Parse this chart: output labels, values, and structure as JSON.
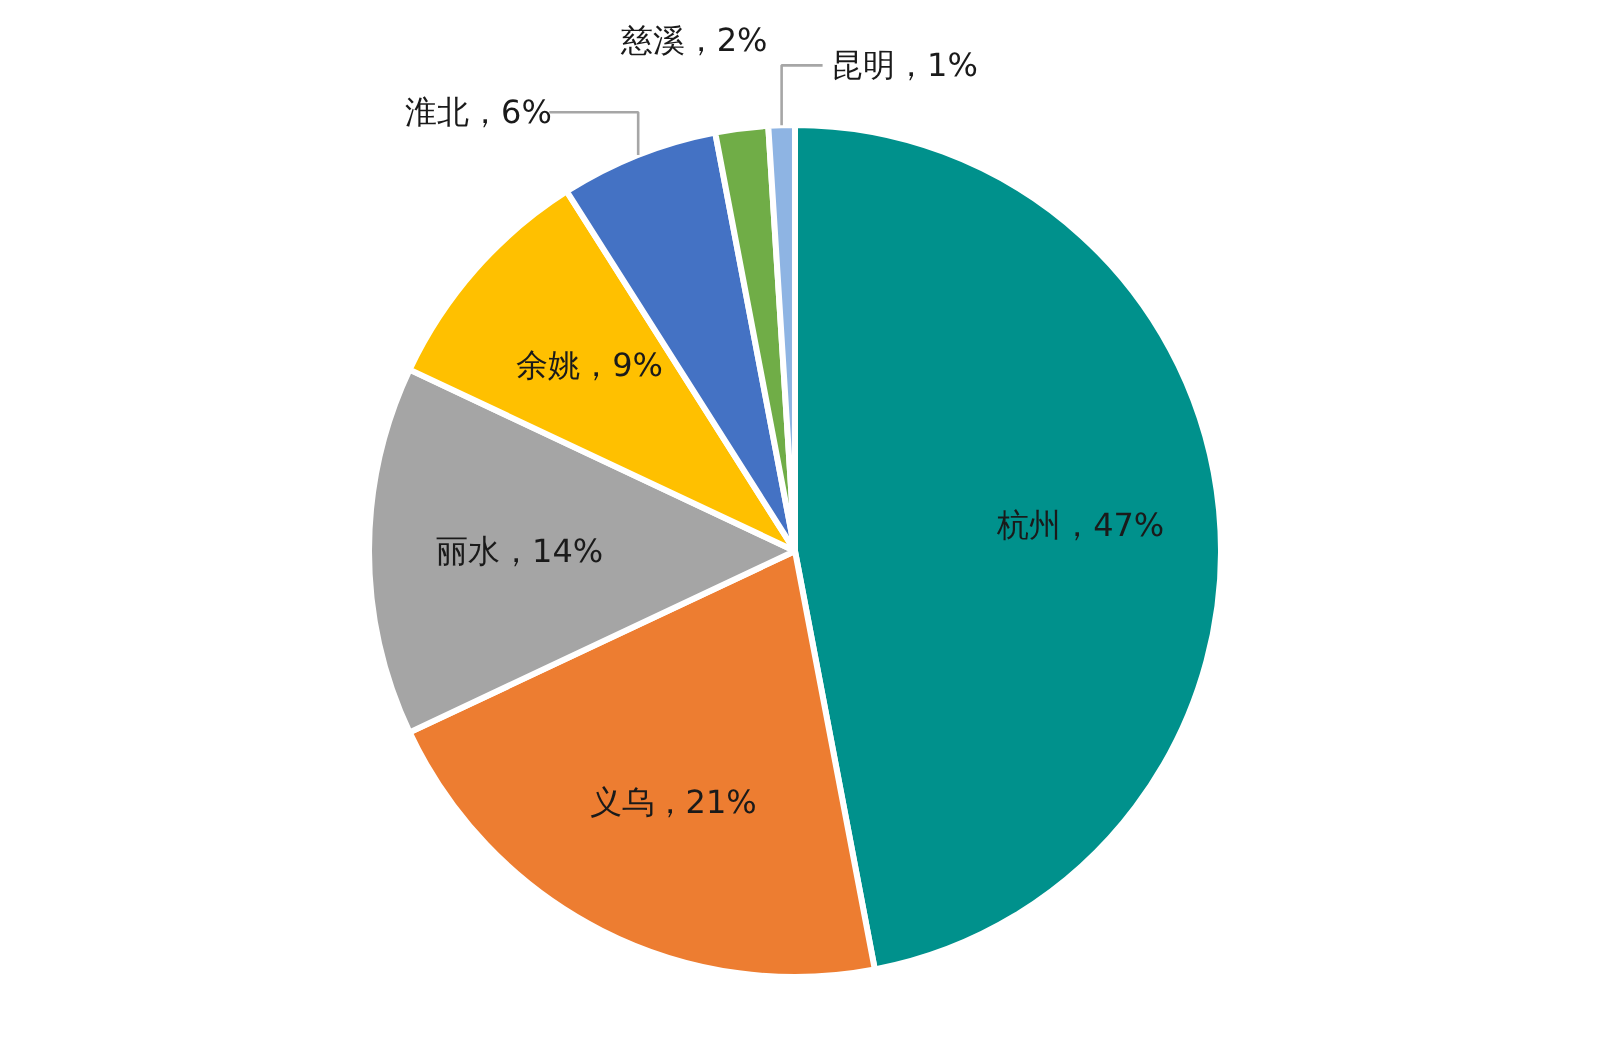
{
  "chart_data": {
    "type": "pie",
    "categories": [
      "杭州",
      "义乌",
      "丽水",
      "余姚",
      "淮北",
      "慈溪",
      "昆明"
    ],
    "values": [
      47,
      21,
      14,
      9,
      6,
      2,
      1
    ],
    "colors": [
      "#00918c",
      "#ed7d31",
      "#a5a5a5",
      "#ffc000",
      "#4472c4",
      "#70ad47",
      "#8eb4e3"
    ],
    "value_labels": [
      "，47%",
      "，21%",
      "，14%",
      "，9%",
      "，6%",
      "，2%",
      "，1%"
    ]
  }
}
